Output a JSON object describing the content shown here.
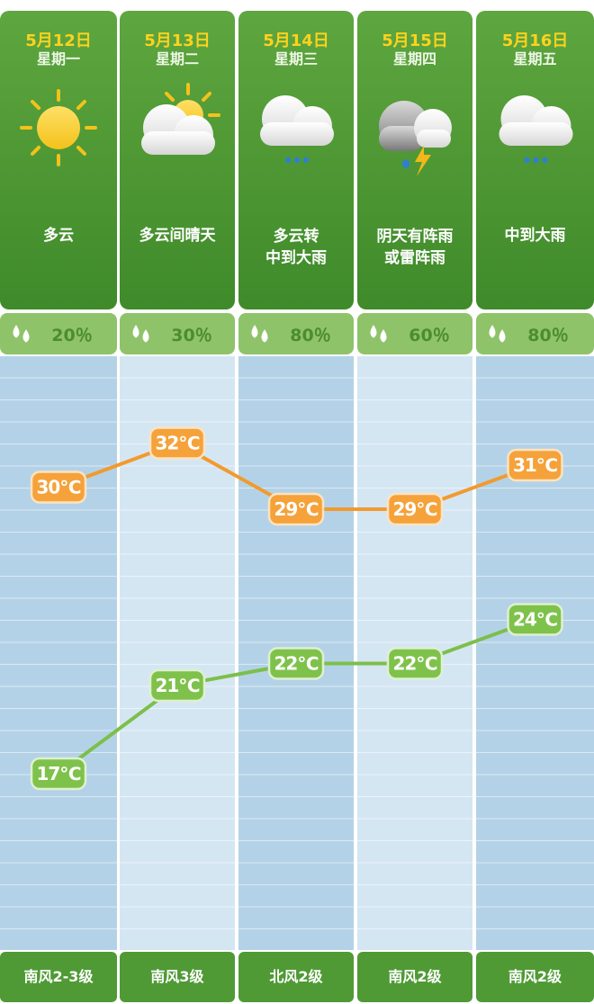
{
  "days": [
    {
      "date": "5月12日",
      "weekday": "星期一",
      "condition": [
        "多云"
      ],
      "icon": "sun-icon",
      "rain_chance": "20％",
      "wind": "南风2-3级"
    },
    {
      "date": "5月13日",
      "weekday": "星期二",
      "condition": [
        "多云间晴天"
      ],
      "icon": "cloud-sun-icon",
      "rain_chance": "30％",
      "wind": "南风3级"
    },
    {
      "date": "5月14日",
      "weekday": "星期三",
      "condition": [
        "多云转",
        "中到大雨"
      ],
      "icon": "cloud-rain-icon",
      "rain_chance": "80％",
      "wind": "北风2级"
    },
    {
      "date": "5月15日",
      "weekday": "星期四",
      "condition": [
        "阴天有阵雨",
        "或雷阵雨"
      ],
      "icon": "thunder-rain-icon",
      "rain_chance": "60％",
      "wind": "南风2级"
    },
    {
      "date": "5月16日",
      "weekday": "星期五",
      "condition": [
        "中到大雨"
      ],
      "icon": "cloud-rain-icon",
      "rain_chance": "80％",
      "wind": "南风2级"
    }
  ],
  "colors": {
    "header_green": "#4f9a35",
    "rain_bar": "#8fc36a",
    "high_line": "#f29a2e",
    "low_line": "#7cbf4a",
    "column_dark": "#b4d2e7",
    "column_light": "#d5e6f3"
  },
  "chart_data": {
    "type": "line",
    "categories": [
      "5月12日",
      "5月13日",
      "5月14日",
      "5月15日",
      "5月16日"
    ],
    "series": [
      {
        "values": [
          30,
          32,
          29,
          29,
          31
        ],
        "labels": [
          "30℃",
          "32℃",
          "29℃",
          "29℃",
          "31℃"
        ]
      },
      {
        "values": [
          17,
          21,
          22,
          22,
          24
        ],
        "labels": [
          "17℃",
          "21℃",
          "22℃",
          "22℃",
          "24℃"
        ]
      }
    ],
    "unit": "℃",
    "grid": true
  }
}
